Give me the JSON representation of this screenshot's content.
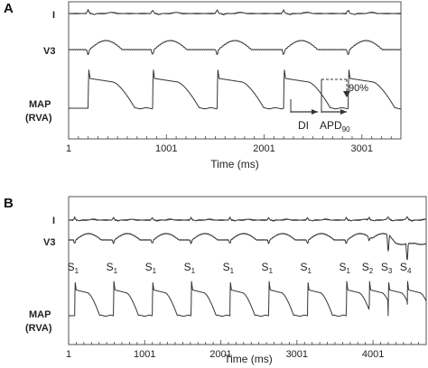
{
  "chart_data": [
    {
      "type": "line",
      "panel_label": "A",
      "xlabel": "Time (ms)",
      "xlim": [
        1,
        3400
      ],
      "x_ticks": [
        "1",
        "1001",
        "2001",
        "3001"
      ],
      "channels": [
        {
          "name": "I"
        },
        {
          "name": "V3"
        },
        {
          "name_line1": "MAP",
          "name_line2": "(RVA)"
        }
      ],
      "beat_onsets_ms": [
        200,
        860,
        1520,
        2200,
        2860
      ],
      "annotations": {
        "di": "DI",
        "apd_base": "APD",
        "apd_sub": "90",
        "percent": "90%"
      }
    },
    {
      "type": "line",
      "panel_label": "B",
      "xlabel": "Time (ms)",
      "xlim": [
        1,
        4700
      ],
      "x_ticks": [
        "1",
        "1001",
        "2001",
        "3001",
        "4001"
      ],
      "channels": [
        {
          "name": "I"
        },
        {
          "name": "V3"
        },
        {
          "name_line1": "MAP",
          "name_line2": "(RVA)"
        }
      ],
      "stimuli": [
        {
          "base": "S",
          "sub": "1",
          "t_ms": 80
        },
        {
          "base": "S",
          "sub": "1",
          "t_ms": 590
        },
        {
          "base": "S",
          "sub": "1",
          "t_ms": 1100
        },
        {
          "base": "S",
          "sub": "1",
          "t_ms": 1610
        },
        {
          "base": "S",
          "sub": "1",
          "t_ms": 2120
        },
        {
          "base": "S",
          "sub": "1",
          "t_ms": 2630
        },
        {
          "base": "S",
          "sub": "1",
          "t_ms": 3140
        },
        {
          "base": "S",
          "sub": "1",
          "t_ms": 3650
        },
        {
          "base": "S",
          "sub": "2",
          "t_ms": 3950
        },
        {
          "base": "S",
          "sub": "3",
          "t_ms": 4200
        },
        {
          "base": "S",
          "sub": "4",
          "t_ms": 4450
        }
      ]
    }
  ]
}
